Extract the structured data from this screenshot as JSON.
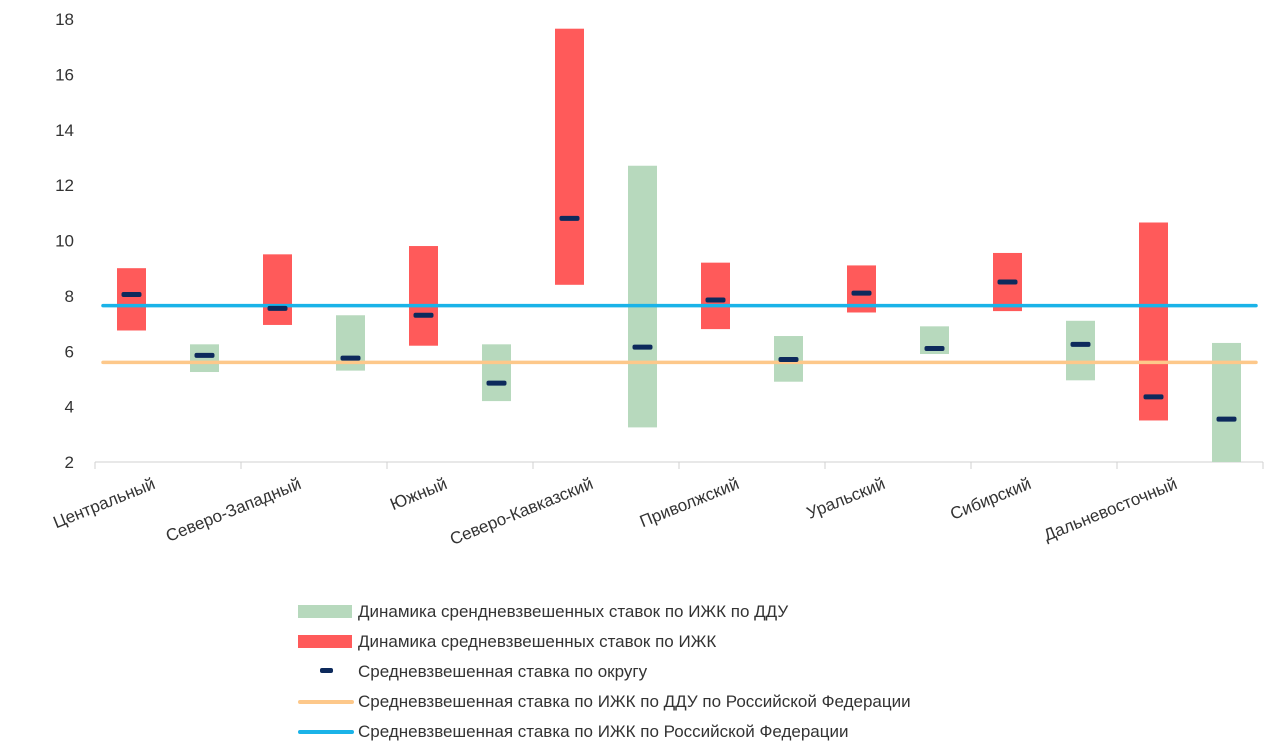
{
  "chart_data": {
    "type": "bar",
    "categories": [
      "Центральный",
      "Северо-Западный",
      "Южный",
      "Северо-Кавказский",
      "Приволжский",
      "Уральский",
      "Сибирский",
      "Дальневосточный"
    ],
    "ylim": [
      2,
      18
    ],
    "yticks": [
      2,
      4,
      6,
      8,
      10,
      12,
      14,
      16,
      18
    ],
    "grid": false,
    "legend_position": "bottom",
    "series": [
      {
        "name": "Динамика средневзвешенных ставок по ИЖК",
        "kind": "range-bar",
        "color": "#ff5a5a",
        "ranges": [
          [
            6.75,
            9.0
          ],
          [
            6.95,
            9.5
          ],
          [
            6.2,
            9.8
          ],
          [
            8.4,
            17.65
          ],
          [
            6.8,
            9.2
          ],
          [
            7.4,
            9.1
          ],
          [
            7.45,
            9.55
          ],
          [
            3.5,
            10.65
          ]
        ]
      },
      {
        "name": "Динамика срендневзвешенных ставок по ИЖК по ДДУ",
        "kind": "range-bar",
        "color": "#b7d9bd",
        "ranges": [
          [
            5.25,
            6.25
          ],
          [
            5.3,
            7.3
          ],
          [
            4.2,
            6.25
          ],
          [
            3.25,
            12.7
          ],
          [
            4.9,
            6.55
          ],
          [
            5.9,
            6.9
          ],
          [
            4.95,
            7.1
          ],
          [
            2.0,
            6.3
          ]
        ]
      },
      {
        "name": "Средневзвешенная ставка по округу",
        "kind": "marker",
        "color": "#0d2a5c",
        "values": [
          8.05,
          7.55,
          7.3,
          10.8,
          7.85,
          8.1,
          8.5,
          4.35
        ],
        "values_dd": [
          5.85,
          5.75,
          4.85,
          6.15,
          5.7,
          6.1,
          6.25,
          3.55
        ]
      },
      {
        "name": "Средневзвешенная ставка по ИЖК по ДДУ по Российской Федерации",
        "kind": "hline",
        "color": "#fdc88a",
        "value": 5.6
      },
      {
        "name": "Средневзвешенная ставка по ИЖК по Российской Федерации",
        "kind": "hline",
        "color": "#1ab3e8",
        "value": 7.65
      }
    ]
  },
  "legend": [
    {
      "label": "Динамика срендневзвешенных ставок по ИЖК по ДДУ",
      "style": "bar",
      "color": "#b7d9bd"
    },
    {
      "label": "Динамика средневзвешенных ставок по ИЖК",
      "style": "bar",
      "color": "#ff5a5a"
    },
    {
      "label": "Средневзвешенная ставка по округу",
      "style": "dash",
      "color": "#0d2a5c"
    },
    {
      "label": "Средневзвешенная ставка по ИЖК по ДДУ по Российской Федерации",
      "style": "line",
      "color": "#fdc88a"
    },
    {
      "label": "Средневзвешенная ставка по ИЖК по Российской Федерации",
      "style": "line",
      "color": "#1ab3e8"
    }
  ]
}
